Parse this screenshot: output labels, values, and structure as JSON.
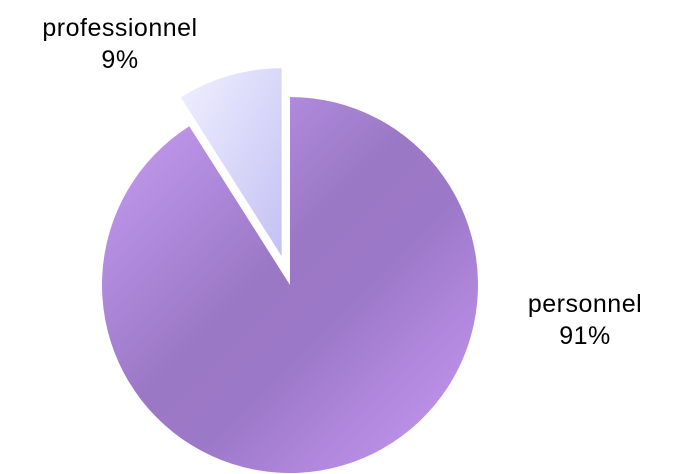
{
  "chart_data": {
    "type": "pie",
    "slices": [
      {
        "label": "professionnel",
        "value": 9,
        "value_label": "9%",
        "exploded": true,
        "color_light": "#e8e9ff",
        "color_dark": "#c5c3f3"
      },
      {
        "label": "personnel",
        "value": 91,
        "value_label": "91%",
        "exploded": false,
        "color_light": "#c89af5",
        "color_dark": "#9b78c6"
      }
    ],
    "start_angle_deg": 0,
    "direction": "counterclockwise",
    "legend": "none",
    "background": "#ffffff"
  }
}
